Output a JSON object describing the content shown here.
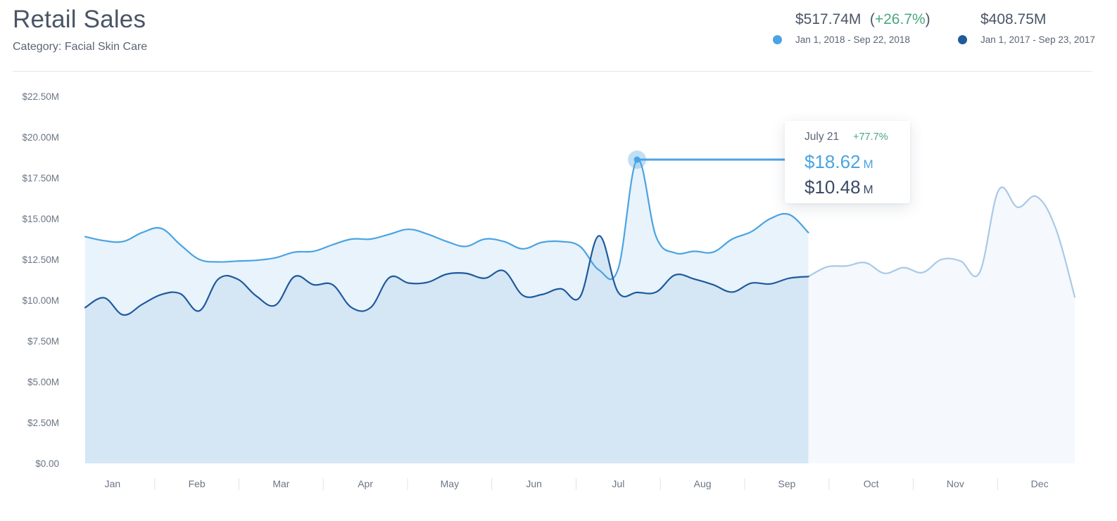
{
  "header": {
    "title": "Retail Sales",
    "subtitle": "Category: Facial Skin Care"
  },
  "summary": {
    "current": {
      "total": "$517.74M",
      "paren_open": "(",
      "change": "+26.7%",
      "paren_close": ")",
      "range": "Jan 1, 2018 - Sep 22, 2018",
      "color": "#4ba3e3"
    },
    "previous": {
      "total": "$408.75M",
      "range": "Jan 1, 2017 - Sep 23, 2017",
      "color": "#1f5a9c"
    }
  },
  "tooltip": {
    "date": "July 21",
    "change": "+77.7%",
    "current_value": "$18.62",
    "previous_value": "$10.48",
    "unit": "M"
  },
  "chart_data": {
    "type": "area",
    "y_tick_labels": [
      "$0.00",
      "$2.50M",
      "$5.00M",
      "$7.50M",
      "$10.00M",
      "$12.50M",
      "$15.00M",
      "$17.50M",
      "$20.00M",
      "$22.50M"
    ],
    "y_ticks": [
      0,
      2.5,
      5,
      7.5,
      10,
      12.5,
      15,
      17.5,
      20,
      22.5
    ],
    "ylim": [
      0,
      22.5
    ],
    "x_tick_labels": [
      "Jan",
      "Feb",
      "Mar",
      "Apr",
      "May",
      "Jun",
      "Jul",
      "Aug",
      "Sep",
      "Oct",
      "Nov",
      "Dec"
    ],
    "x_unit": "week",
    "xlim": [
      0,
      52
    ],
    "highlight": {
      "x": 29,
      "y": 18.62
    },
    "grid": false,
    "series": [
      {
        "name": "Jan 1, 2018 - Sep 22, 2018",
        "color": "#4ba3e3",
        "fill": "#e8f3fc",
        "x": [
          0,
          1,
          2,
          3,
          4,
          5,
          6,
          7,
          8,
          9,
          10,
          11,
          12,
          13,
          14,
          15,
          16,
          17,
          18,
          19,
          20,
          21,
          22,
          23,
          24,
          25,
          26,
          27,
          28,
          29,
          30,
          31,
          32,
          33,
          34,
          35,
          36,
          37,
          38
        ],
        "values": [
          13.9,
          13.65,
          13.6,
          14.15,
          14.4,
          13.4,
          12.5,
          12.35,
          12.4,
          12.45,
          12.6,
          12.95,
          13.0,
          13.4,
          13.75,
          13.75,
          14.05,
          14.35,
          14.05,
          13.6,
          13.3,
          13.75,
          13.6,
          13.15,
          13.55,
          13.6,
          13.3,
          11.85,
          11.9,
          18.62,
          13.9,
          12.9,
          13.0,
          12.95,
          13.75,
          14.2,
          15.0,
          15.25,
          14.15
        ]
      },
      {
        "name": "Jan 1, 2017 - Sep 23, 2017",
        "color": "#1f5a9c",
        "fill": "#d5e6f5",
        "x": [
          0,
          1,
          2,
          3,
          4,
          5,
          6,
          7,
          8,
          9,
          10,
          11,
          12,
          13,
          14,
          15,
          16,
          17,
          18,
          19,
          20,
          21,
          22,
          23,
          24,
          25,
          26,
          27,
          28,
          29,
          30,
          31,
          32,
          33,
          34,
          35,
          36,
          37,
          38
        ],
        "values": [
          9.55,
          10.15,
          9.1,
          9.75,
          10.35,
          10.4,
          9.35,
          11.3,
          11.3,
          10.25,
          9.7,
          11.45,
          10.95,
          10.95,
          9.55,
          9.55,
          11.4,
          11.05,
          11.1,
          11.6,
          11.65,
          11.35,
          11.8,
          10.3,
          10.35,
          10.7,
          10.2,
          13.95,
          10.5,
          10.48,
          10.5,
          11.55,
          11.3,
          10.95,
          10.5,
          11.05,
          11.0,
          11.35,
          11.45
        ]
      },
      {
        "name": "",
        "color": "#a9c9e8",
        "fill": "#f5f8fc",
        "x": [
          38,
          39,
          40,
          41,
          42,
          43,
          44,
          45,
          46,
          47,
          48,
          49,
          50,
          51,
          52
        ],
        "values": [
          11.45,
          12.05,
          12.1,
          12.3,
          11.65,
          12.0,
          11.7,
          12.5,
          12.4,
          11.7,
          16.75,
          15.7,
          16.35,
          14.4,
          10.2
        ]
      }
    ]
  }
}
